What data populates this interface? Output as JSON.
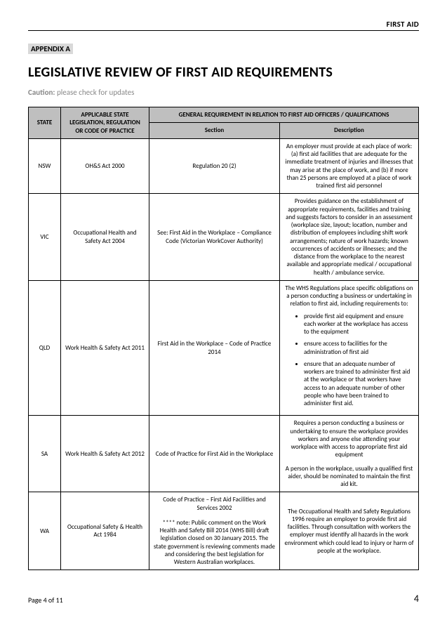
{
  "header": {
    "right": "FIRST AID"
  },
  "appendix": "APPENDIX A",
  "title": "LEGISLATIVE REVIEW OF FIRST AID REQUIREMENTS",
  "caution_label": "Caution:",
  "caution_text": " please check for updates",
  "table": {
    "head": {
      "state": "STATE",
      "legislation": "APPLICABLE STATE LEGISLATION, REGULATION OR CODE OF PRACTICE",
      "general": "GENERAL REQUIREMENT IN RELATION TO FIRST AID OFFICERS / QUALIFICATIONS",
      "section": "Section",
      "description": "Description"
    },
    "rows": {
      "nsw": {
        "state": "NSW",
        "leg": "OH&S Act 2000",
        "sec": "Regulation 20 (2)",
        "desc": "An employer must provide at each place of work: (a) first aid facilities that are adequate for the immediate treatment of injuries and illnesses that may arise at the place of work, and (b) if more than 25 persons are employed at a place of work trained first aid personnel"
      },
      "vic": {
        "state": "VIC",
        "leg": "Occupational Health and Safety Act 2004",
        "sec": "See: First Aid in the Workplace – Compliance Code (Victorian WorkCover Authority)",
        "desc": "Provides guidance on the establishment of appropriate requirements, facilities and training and suggests factors to consider in an assessment (workplace size, layout; location, number and distribution of employees including shift work arrangements; nature of work hazards; known occurrences of accidents or illnesses; and the distance from the workplace to the nearest available and appropriate medical / occupational health / ambulance service."
      },
      "qld": {
        "state": "QLD",
        "leg": "Work Health & Safety Act 2011",
        "sec": "First Aid in the Workplace – Code of Practice 2014",
        "desc_intro": "The WHS Regulations place specific obligations on a person conducting a business or undertaking in relation to first aid, including requirements to:",
        "desc_b1": "provide first aid equipment and ensure each worker at the workplace has access to the equipment",
        "desc_b2": "ensure access to facilities for the administration of first aid",
        "desc_b3": "ensure that an adequate number of workers are trained to administer first aid at the workplace or that workers have access to an adequate number of other people who have been trained to administer first aid."
      },
      "sa": {
        "state": "SA",
        "leg": "Work Health & Safety Act 2012",
        "sec": "Code of Practice for First Aid in the Workplace",
        "desc_p1": "Requires a person conducting a business or undertaking to ensure the workplace provides workers and anyone else attending your workplace with access to appropriate first aid equipment",
        "desc_p2": "A person in the workplace, usually a qualified first aider, should be nominated to maintain the first aid kit."
      },
      "wa": {
        "state": "WA",
        "leg": "Occupational Safety & Health Act 1984",
        "sec_p1": "Code of Practice – First Aid Facilities and Services 2002",
        "sec_p2": "**** note: Public comment on the Work Health and Safety Bill 2014 (WHS Bill) draft legislation closed on 30 January 2015.  The state government is reviewing comments made and considering the best legislation for Western Australian workplaces.",
        "desc": "The Occupational Health and Safety Regulations 1996 require an employer to provide first aid facilities. Through consultation with workers the employer must identify all hazards in the work environment which could lead to injury or harm of people at the workplace."
      }
    }
  },
  "footer": {
    "label": "Page 4 of 11",
    "num": "4"
  }
}
